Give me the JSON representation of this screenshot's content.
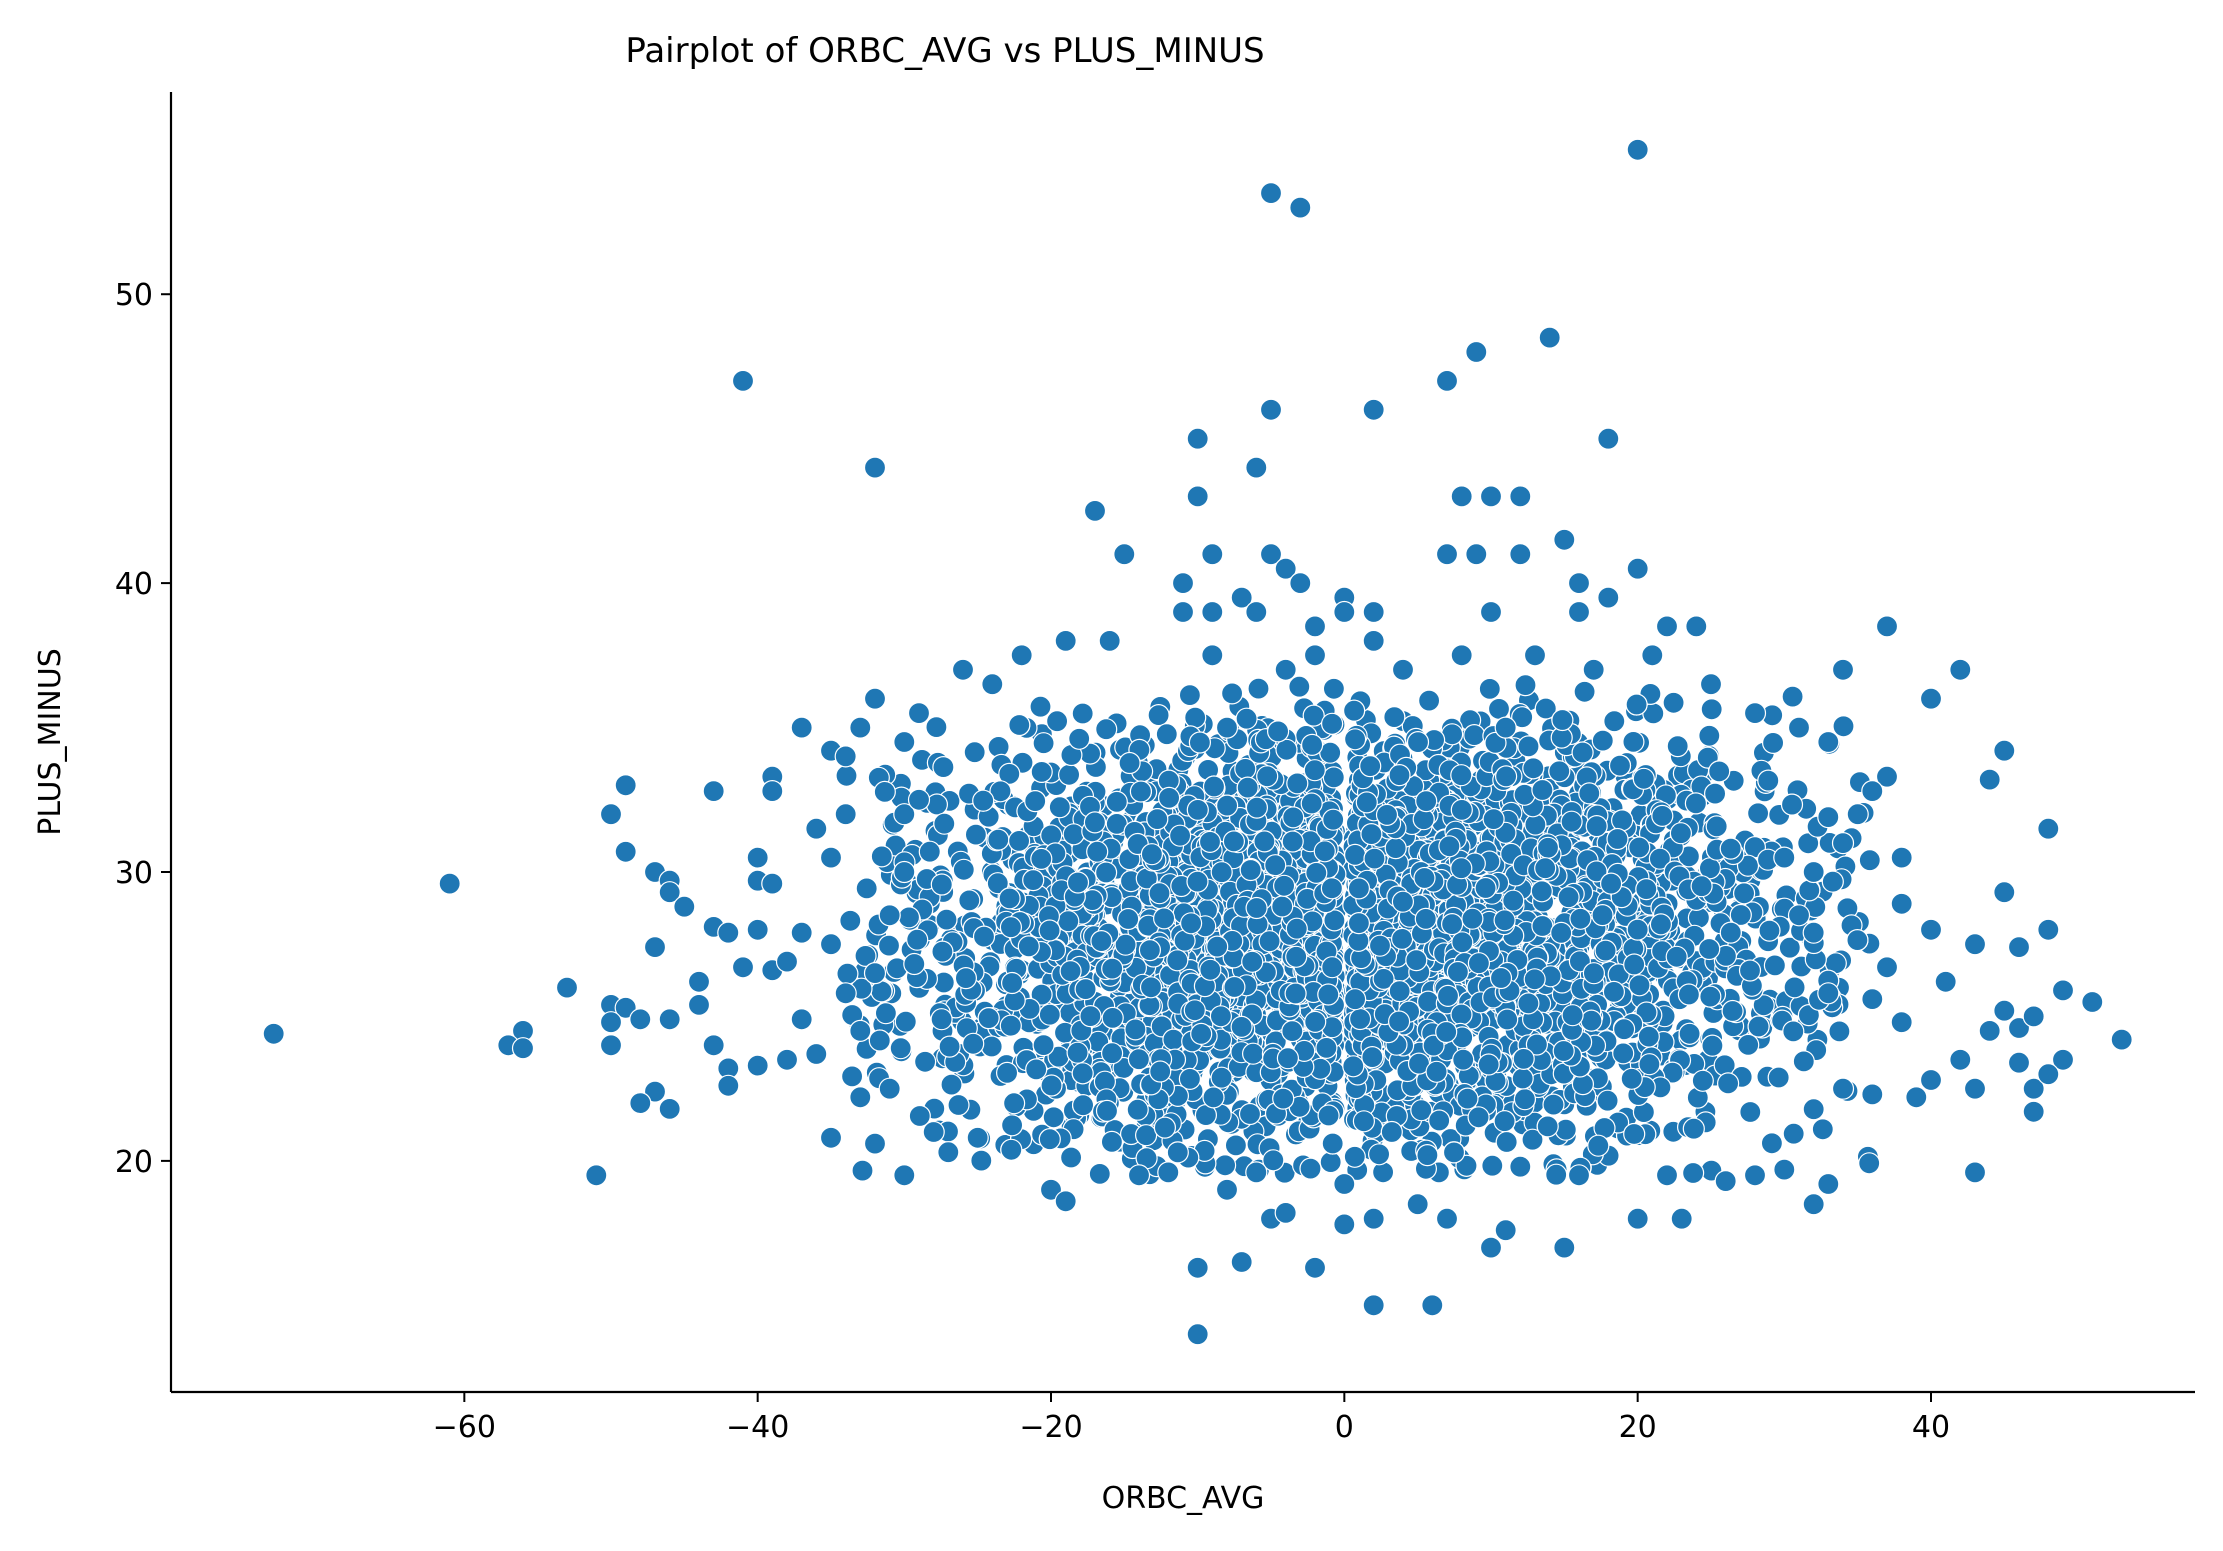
{
  "chart_data": {
    "type": "scatter",
    "title": "Pairplot of ORBC_AVG vs PLUS_MINUS",
    "xlabel": "ORBC_AVG",
    "ylabel": "PLUS_MINUS",
    "xlim": [
      -80,
      58
    ],
    "ylim": [
      12,
      57
    ],
    "xticks": [
      -60,
      -40,
      -20,
      0,
      20,
      40
    ],
    "xtick_labels": [
      "−60",
      "−40",
      "−20",
      "0",
      "20",
      "40"
    ],
    "yticks": [
      20,
      30,
      40,
      50
    ],
    "ytick_labels": [
      "20",
      "30",
      "40",
      "50"
    ],
    "grid": false,
    "marker_color": "#1f77b4",
    "marker_edge_color": "#ffffff",
    "series": [
      {
        "name": "ORBC_AVG vs PLUS_MINUS",
        "points": [
          [
            20,
            55
          ],
          [
            -5,
            53.5
          ],
          [
            -3,
            53
          ],
          [
            -10,
            45
          ],
          [
            -10,
            43
          ],
          [
            -41,
            47
          ],
          [
            -32,
            44
          ],
          [
            9,
            48
          ],
          [
            14,
            48.5
          ],
          [
            7,
            47
          ],
          [
            2,
            46
          ],
          [
            -5,
            46
          ],
          [
            18,
            45
          ],
          [
            -6,
            44
          ],
          [
            8,
            43
          ],
          [
            10,
            43
          ],
          [
            12,
            43
          ],
          [
            -17,
            42.5
          ],
          [
            -15,
            41
          ],
          [
            -9,
            41
          ],
          [
            -5,
            41
          ],
          [
            9,
            41
          ],
          [
            15,
            41.5
          ],
          [
            12,
            41
          ],
          [
            7,
            41
          ],
          [
            20,
            40.5
          ],
          [
            -11,
            40
          ],
          [
            -4,
            40.5
          ],
          [
            -3,
            40
          ],
          [
            16,
            40
          ],
          [
            -7,
            39.5
          ],
          [
            0,
            39.5
          ],
          [
            0,
            39
          ],
          [
            2,
            39
          ],
          [
            18,
            39.5
          ],
          [
            -11,
            39
          ],
          [
            -9,
            39
          ],
          [
            -6,
            39
          ],
          [
            10,
            39
          ],
          [
            16,
            39
          ],
          [
            -2,
            38.5
          ],
          [
            22,
            38.5
          ],
          [
            24,
            38.5
          ],
          [
            37,
            38.5
          ],
          [
            -16,
            38
          ],
          [
            -19,
            38
          ],
          [
            2,
            38
          ],
          [
            8,
            37.5
          ],
          [
            -22,
            37.5
          ],
          [
            -9,
            37.5
          ],
          [
            -2,
            37.5
          ],
          [
            13,
            37.5
          ],
          [
            21,
            37.5
          ],
          [
            -26,
            37
          ],
          [
            34,
            37
          ],
          [
            42,
            37
          ],
          [
            -24,
            36.5
          ],
          [
            17,
            37
          ],
          [
            -4,
            37
          ],
          [
            4,
            37
          ],
          [
            25,
            36.5
          ],
          [
            -32,
            36
          ],
          [
            40,
            36
          ],
          [
            -29,
            35.5
          ],
          [
            28,
            35.5
          ],
          [
            -37,
            35
          ],
          [
            -33,
            35
          ],
          [
            -8,
            35
          ],
          [
            11,
            35
          ],
          [
            31,
            35
          ],
          [
            -35,
            34.2
          ],
          [
            -30,
            34.5
          ],
          [
            45,
            34.2
          ],
          [
            33,
            34.5
          ],
          [
            -34,
            34
          ],
          [
            -39,
            33.3
          ],
          [
            44,
            33.2
          ],
          [
            37,
            33.3
          ],
          [
            -49,
            33
          ],
          [
            -43,
            32.8
          ],
          [
            -39,
            32.8
          ],
          [
            36,
            32.8
          ],
          [
            -50,
            32
          ],
          [
            -34,
            32
          ],
          [
            -30,
            32
          ],
          [
            35,
            32
          ],
          [
            48,
            31.5
          ],
          [
            -36,
            31.5
          ],
          [
            34,
            31
          ],
          [
            -49,
            30.7
          ],
          [
            -40,
            30.5
          ],
          [
            38,
            30.5
          ],
          [
            -35,
            30.5
          ],
          [
            -47,
            30
          ],
          [
            -46,
            29.7
          ],
          [
            -40,
            29.7
          ],
          [
            -39,
            29.6
          ],
          [
            -61,
            29.6
          ],
          [
            -46,
            29.3
          ],
          [
            -45,
            28.8
          ],
          [
            45,
            29.3
          ],
          [
            38,
            28.9
          ],
          [
            -43,
            28.1
          ],
          [
            -42,
            27.9
          ],
          [
            -40,
            28
          ],
          [
            -37,
            27.9
          ],
          [
            40,
            28
          ],
          [
            48,
            28
          ],
          [
            43,
            27.5
          ],
          [
            -47,
            27.4
          ],
          [
            46,
            27.4
          ],
          [
            -41,
            26.7
          ],
          [
            -44,
            26.2
          ],
          [
            -53,
            26
          ],
          [
            -39,
            26.6
          ],
          [
            41,
            26.2
          ],
          [
            49,
            25.9
          ],
          [
            -50,
            25.4
          ],
          [
            -49,
            25.3
          ],
          [
            -44,
            25.4
          ],
          [
            51,
            25.5
          ],
          [
            45,
            25.2
          ],
          [
            -46,
            24.9
          ],
          [
            -48,
            24.9
          ],
          [
            -50,
            24.8
          ],
          [
            38,
            24.8
          ],
          [
            44,
            24.5
          ],
          [
            46,
            24.6
          ],
          [
            -56,
            24.5
          ],
          [
            -73,
            24.4
          ],
          [
            53,
            24.2
          ],
          [
            47,
            25
          ],
          [
            -57,
            24
          ],
          [
            -56,
            23.9
          ],
          [
            -50,
            24
          ],
          [
            -43,
            24
          ],
          [
            -42,
            23.2
          ],
          [
            -40,
            23.3
          ],
          [
            -38,
            23.5
          ],
          [
            42,
            23.5
          ],
          [
            49,
            23.5
          ],
          [
            46,
            23.4
          ],
          [
            -42,
            22.6
          ],
          [
            -47,
            22.4
          ],
          [
            -48,
            22
          ],
          [
            -46,
            21.8
          ],
          [
            43,
            22.5
          ],
          [
            47,
            22.5
          ],
          [
            48,
            23
          ],
          [
            47,
            21.7
          ],
          [
            -35,
            20.8
          ],
          [
            -32,
            20.6
          ],
          [
            -30,
            19.5
          ],
          [
            -51,
            19.5
          ],
          [
            -25,
            20.8
          ],
          [
            -27,
            20.3
          ],
          [
            43,
            19.6
          ],
          [
            32,
            18.5
          ],
          [
            33,
            19.2
          ],
          [
            30,
            19.7
          ],
          [
            -20,
            19
          ],
          [
            -19,
            18.6
          ],
          [
            -12,
            19.6
          ],
          [
            -10,
            16.3
          ],
          [
            -10,
            14
          ],
          [
            -7,
            16.5
          ],
          [
            -2,
            16.3
          ],
          [
            2,
            15
          ],
          [
            6,
            15
          ],
          [
            10,
            17
          ],
          [
            15,
            17
          ],
          [
            11,
            17.6
          ],
          [
            20,
            18
          ],
          [
            23,
            18
          ],
          [
            -5,
            18
          ],
          [
            0,
            17.8
          ],
          [
            2,
            18
          ],
          [
            7,
            18
          ],
          [
            -4,
            18.2
          ],
          [
            5,
            18.5
          ],
          [
            -8,
            19
          ],
          [
            12,
            19.8
          ],
          [
            26,
            19.3
          ],
          [
            28,
            19.5
          ],
          [
            -14,
            19.5
          ],
          [
            -6,
            19.6
          ],
          [
            0,
            19.2
          ],
          [
            16,
            19.5
          ],
          [
            22,
            19.5
          ],
          [
            34,
            22.5
          ],
          [
            36,
            22.3
          ],
          [
            39,
            22.2
          ],
          [
            40,
            22.8
          ],
          [
            36,
            25.6
          ],
          [
            37,
            26.7
          ],
          [
            33,
            25.8
          ],
          [
            32,
            27.9
          ],
          [
            31,
            28.5
          ],
          [
            30,
            30.5
          ],
          [
            32,
            30
          ],
          [
            33,
            31.9
          ],
          [
            -33,
            24.5
          ],
          [
            -32,
            26.5
          ],
          [
            -31,
            28.5
          ],
          [
            -30,
            30
          ],
          [
            -29,
            32.5
          ],
          [
            -31,
            22.5
          ],
          [
            -33,
            22.2
          ],
          [
            -28,
            21
          ],
          [
            -36,
            23.7
          ],
          [
            -34,
            25.8
          ],
          [
            -38,
            26.9
          ],
          [
            -37,
            24.9
          ],
          [
            -35,
            27.5
          ]
        ]
      }
    ]
  }
}
